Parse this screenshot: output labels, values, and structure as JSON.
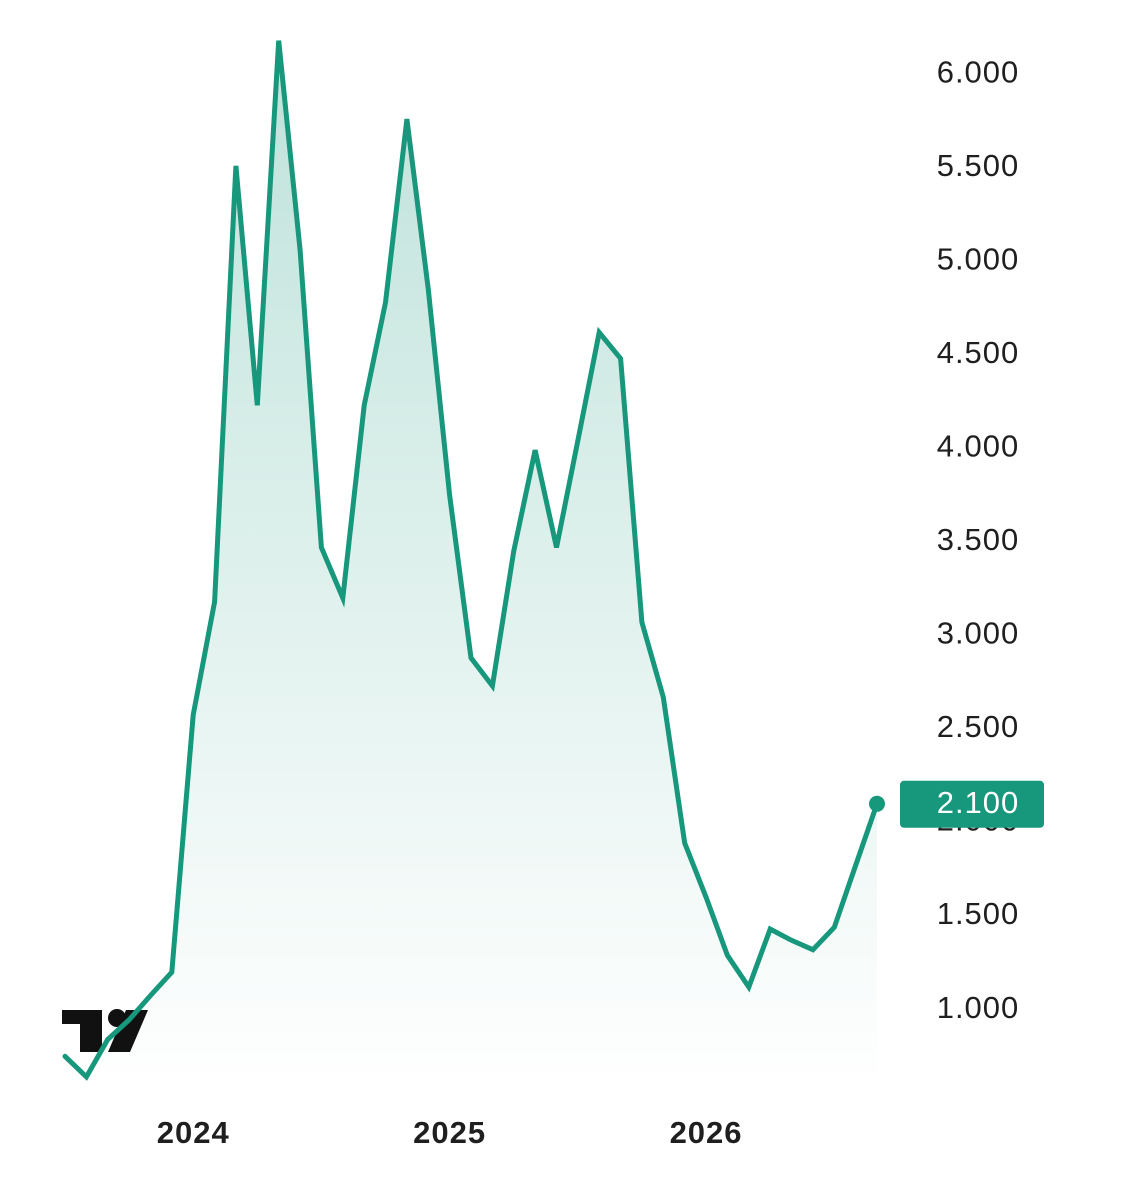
{
  "chart_data": {
    "type": "area",
    "categories": [
      null,
      null,
      null,
      null,
      null,
      null,
      "2024",
      null,
      null,
      null,
      null,
      null,
      null,
      null,
      null,
      null,
      null,
      null,
      "2025",
      null,
      null,
      null,
      null,
      null,
      null,
      null,
      null,
      null,
      null,
      null,
      "2026",
      null,
      null,
      null,
      null,
      null,
      null,
      null,
      null
    ],
    "values": [
      750,
      640,
      840,
      945,
      1075,
      1200,
      2575,
      3180,
      5510,
      4230,
      6180,
      5060,
      3470,
      3200,
      4230,
      4780,
      5760,
      4850,
      3750,
      2880,
      2730,
      3450,
      3990,
      3470,
      4040,
      4620,
      4480,
      3070,
      2670,
      1890,
      1600,
      1290,
      1120,
      1430,
      1370,
      1320,
      1440,
      1770,
      2100
    ],
    "value_labels": [
      null,
      null,
      null,
      null,
      null,
      null,
      null,
      null,
      null,
      null,
      null,
      null,
      null,
      null,
      null,
      null,
      null,
      null,
      null,
      null,
      null,
      null,
      null,
      null,
      null,
      null,
      null,
      null,
      null,
      null,
      null,
      null,
      null,
      null,
      null,
      null,
      null,
      null,
      "2.100"
    ],
    "color": "#17977b",
    "ylim": [
      570,
      6290
    ],
    "yticks": [
      {
        "value": 1000,
        "label": "1.000"
      },
      {
        "value": 1500,
        "label": "1.500"
      },
      {
        "value": 2000,
        "label": "2.000"
      },
      {
        "value": 2500,
        "label": "2.500"
      },
      {
        "value": 3000,
        "label": "3.000"
      },
      {
        "value": 3500,
        "label": "3.500"
      },
      {
        "value": 4000,
        "label": "4.000"
      },
      {
        "value": 4500,
        "label": "4.500"
      },
      {
        "value": 5000,
        "label": "5.000"
      },
      {
        "value": 5500,
        "label": "5.500"
      },
      {
        "value": 6000,
        "label": "6.000"
      }
    ],
    "grid": false
  }
}
